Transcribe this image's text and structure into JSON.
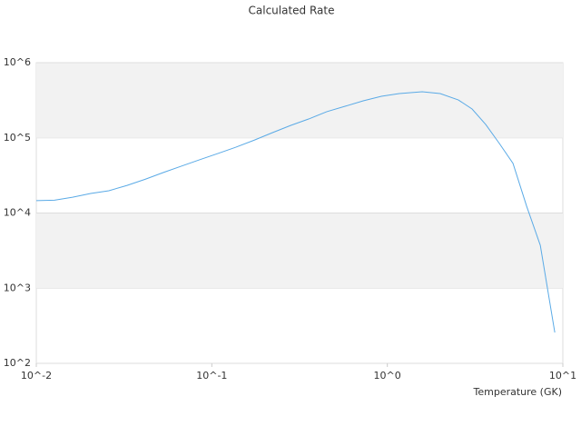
{
  "chart_data": {
    "type": "line",
    "title": "Calculated Rate",
    "x_label": "Temperature (GK)",
    "x": [
      0.01,
      0.0127,
      0.0161,
      0.0204,
      0.0259,
      0.0329,
      0.0417,
      0.053,
      0.067,
      0.085,
      0.108,
      0.137,
      0.174,
      0.221,
      0.281,
      0.356,
      0.452,
      0.574,
      0.729,
      0.925,
      1.17,
      1.58,
      2.0,
      2.54,
      3.04,
      3.64,
      4.35,
      5.2,
      6.22,
      7.44,
      9.0
    ],
    "series": [
      {
        "color": "#5aaae6",
        "values": [
          14600,
          14800,
          16200,
          18200,
          19800,
          23300,
          28100,
          34600,
          42000,
          51000,
          61800,
          75000,
          93000,
          117000,
          146000,
          178000,
          223000,
          263000,
          311000,
          357000,
          388000,
          410000,
          388000,
          319000,
          242000,
          150000,
          84000,
          45700,
          12300,
          3720,
          257
        ]
      }
    ],
    "xscale": "log",
    "yscale": "log",
    "xlim": [
      0.01,
      10
    ],
    "ylim": [
      100,
      1000000
    ],
    "xticks": [
      {
        "value": 0.01,
        "label": "10^-2"
      },
      {
        "value": 0.1,
        "label": "10^-1"
      },
      {
        "value": 1,
        "label": "10^0"
      },
      {
        "value": 10,
        "label": "10^1"
      }
    ],
    "yticks": [
      {
        "value": 100,
        "label": "10^2"
      },
      {
        "value": 1000,
        "label": "10^3"
      },
      {
        "value": 10000,
        "label": "10^4"
      },
      {
        "value": 100000,
        "label": "10^5"
      },
      {
        "value": 1000000,
        "label": "10^6"
      }
    ],
    "grid": true
  }
}
